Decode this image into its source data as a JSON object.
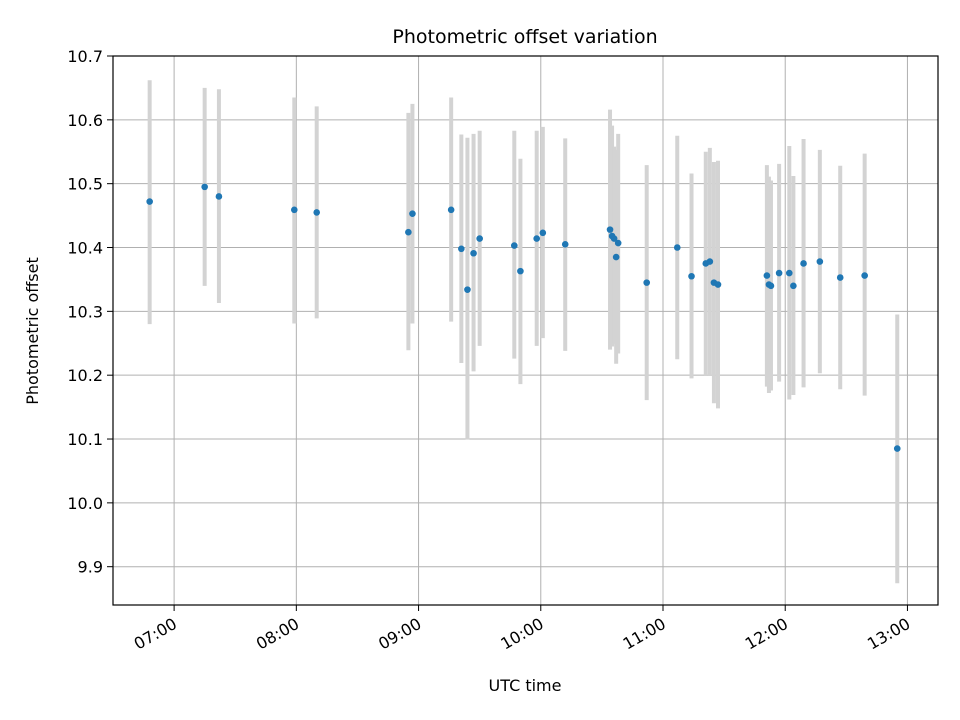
{
  "chart_data": {
    "type": "scatter",
    "title": "Photometric offset variation",
    "xlabel": "UTC time",
    "ylabel": "Photometric offset",
    "x_tick_labels": [
      "07:00",
      "08:00",
      "09:00",
      "10:00",
      "11:00",
      "12:00",
      "13:00"
    ],
    "y_tick_labels": [
      "9.9",
      "10.0",
      "10.1",
      "10.2",
      "10.3",
      "10.4",
      "10.5",
      "10.6",
      "10.7"
    ],
    "xlim": [
      "06:30",
      "13:15"
    ],
    "ylim": [
      9.84,
      10.7
    ],
    "grid": true,
    "marker_color": "#1f77b4",
    "errorbar_color": "#d3d3d3",
    "points": [
      {
        "x": "06:48",
        "y": 10.472,
        "lo": 10.28,
        "hi": 10.662
      },
      {
        "x": "07:15",
        "y": 10.495,
        "lo": 10.34,
        "hi": 10.65
      },
      {
        "x": "07:22",
        "y": 10.48,
        "lo": 10.313,
        "hi": 10.648
      },
      {
        "x": "07:59",
        "y": 10.459,
        "lo": 10.281,
        "hi": 10.635
      },
      {
        "x": "08:10",
        "y": 10.455,
        "lo": 10.289,
        "hi": 10.621
      },
      {
        "x": "08:55",
        "y": 10.424,
        "lo": 10.239,
        "hi": 10.611
      },
      {
        "x": "08:57",
        "y": 10.453,
        "lo": 10.281,
        "hi": 10.625
      },
      {
        "x": "09:16",
        "y": 10.459,
        "lo": 10.284,
        "hi": 10.635
      },
      {
        "x": "09:21",
        "y": 10.398,
        "lo": 10.219,
        "hi": 10.577
      },
      {
        "x": "09:24",
        "y": 10.334,
        "lo": 10.099,
        "hi": 10.572
      },
      {
        "x": "09:27",
        "y": 10.391,
        "lo": 10.206,
        "hi": 10.578
      },
      {
        "x": "09:30",
        "y": 10.414,
        "lo": 10.246,
        "hi": 10.583
      },
      {
        "x": "09:47",
        "y": 10.403,
        "lo": 10.226,
        "hi": 10.583
      },
      {
        "x": "09:50",
        "y": 10.363,
        "lo": 10.186,
        "hi": 10.539
      },
      {
        "x": "09:58",
        "y": 10.414,
        "lo": 10.246,
        "hi": 10.583
      },
      {
        "x": "10:01",
        "y": 10.423,
        "lo": 10.258,
        "hi": 10.589
      },
      {
        "x": "10:12",
        "y": 10.405,
        "lo": 10.238,
        "hi": 10.571
      },
      {
        "x": "10:34",
        "y": 10.428,
        "lo": 10.24,
        "hi": 10.616
      },
      {
        "x": "10:35",
        "y": 10.418,
        "lo": 10.245,
        "hi": 10.591
      },
      {
        "x": "10:36",
        "y": 10.414,
        "lo": 10.249,
        "hi": 10.558
      },
      {
        "x": "10:37",
        "y": 10.385,
        "lo": 10.218,
        "hi": 10.553
      },
      {
        "x": "10:38",
        "y": 10.407,
        "lo": 10.234,
        "hi": 10.578
      },
      {
        "x": "10:52",
        "y": 10.345,
        "lo": 10.161,
        "hi": 10.529
      },
      {
        "x": "11:07",
        "y": 10.4,
        "lo": 10.225,
        "hi": 10.575
      },
      {
        "x": "11:14",
        "y": 10.355,
        "lo": 10.195,
        "hi": 10.516
      },
      {
        "x": "11:21",
        "y": 10.375,
        "lo": 10.2,
        "hi": 10.55
      },
      {
        "x": "11:23",
        "y": 10.378,
        "lo": 10.2,
        "hi": 10.556
      },
      {
        "x": "11:25",
        "y": 10.345,
        "lo": 10.156,
        "hi": 10.534
      },
      {
        "x": "11:27",
        "y": 10.342,
        "lo": 10.148,
        "hi": 10.536
      },
      {
        "x": "11:51",
        "y": 10.356,
        "lo": 10.182,
        "hi": 10.529
      },
      {
        "x": "11:52",
        "y": 10.342,
        "lo": 10.172,
        "hi": 10.511
      },
      {
        "x": "11:53",
        "y": 10.34,
        "lo": 10.176,
        "hi": 10.505
      },
      {
        "x": "11:57",
        "y": 10.36,
        "lo": 10.19,
        "hi": 10.531
      },
      {
        "x": "12:02",
        "y": 10.36,
        "lo": 10.162,
        "hi": 10.559
      },
      {
        "x": "12:04",
        "y": 10.34,
        "lo": 10.169,
        "hi": 10.512
      },
      {
        "x": "12:09",
        "y": 10.375,
        "lo": 10.181,
        "hi": 10.57
      },
      {
        "x": "12:17",
        "y": 10.378,
        "lo": 10.203,
        "hi": 10.553
      },
      {
        "x": "12:27",
        "y": 10.353,
        "lo": 10.178,
        "hi": 10.528
      },
      {
        "x": "12:39",
        "y": 10.356,
        "lo": 10.168,
        "hi": 10.547
      },
      {
        "x": "12:55",
        "y": 10.085,
        "lo": 9.874,
        "hi": 10.295
      }
    ]
  }
}
